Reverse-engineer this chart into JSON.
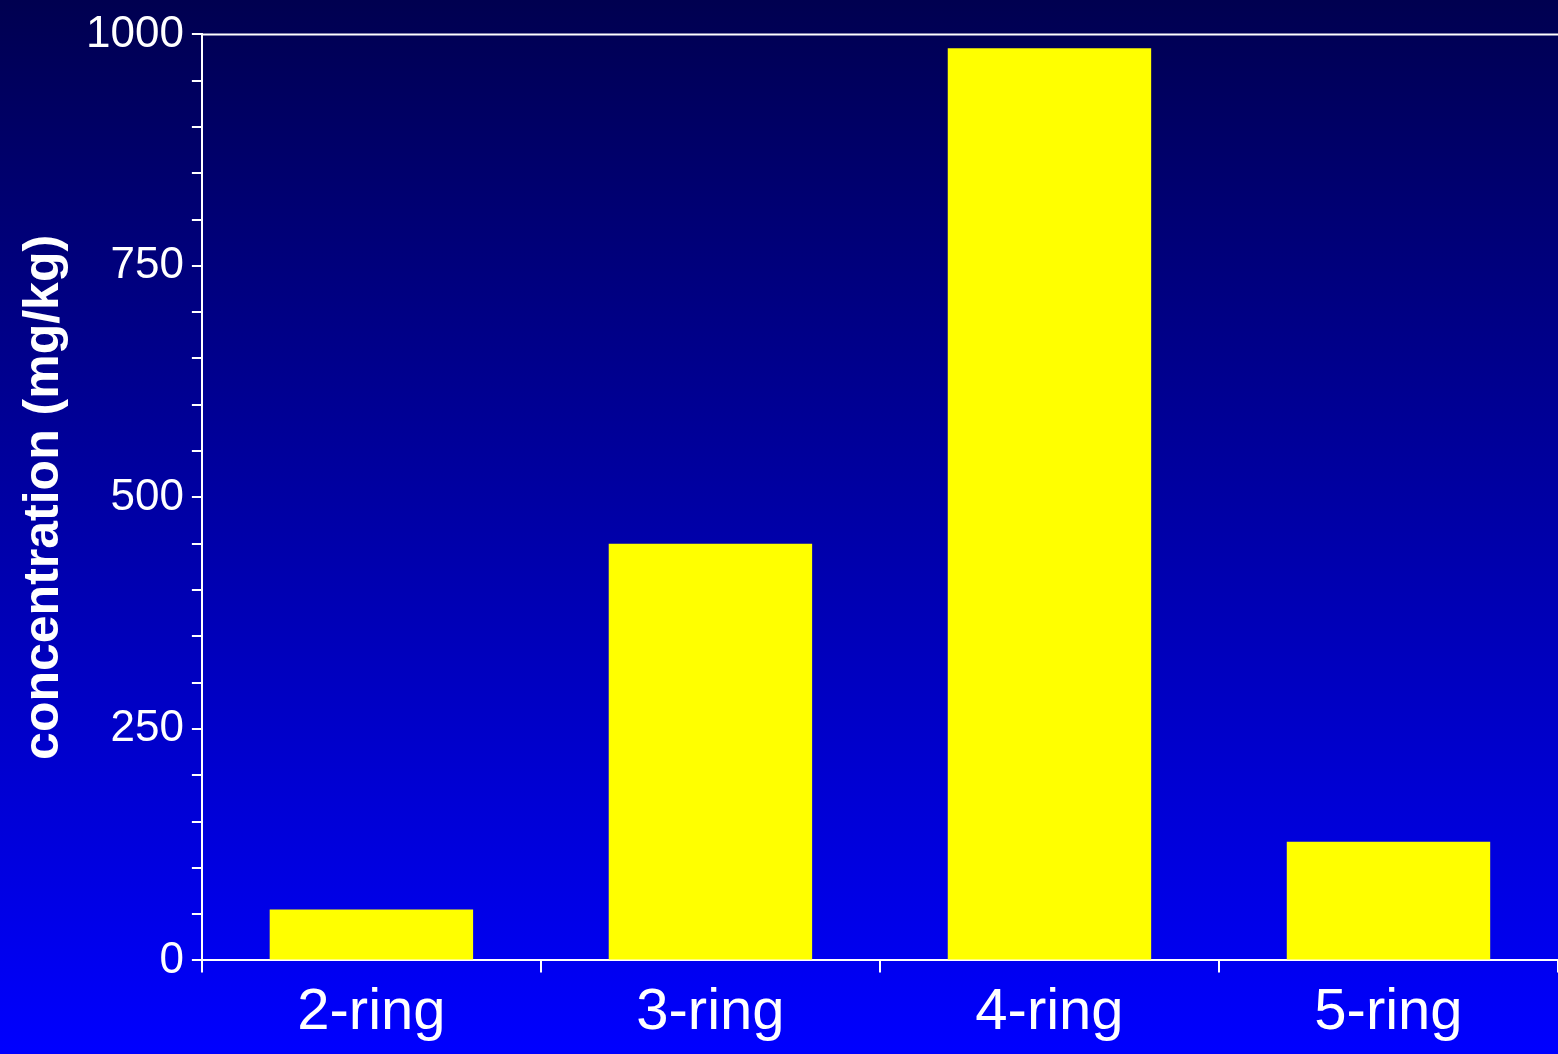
{
  "chart_data": {
    "type": "bar",
    "ylabel": "concentration (mg/kg)",
    "categories": [
      "2-ring",
      "3-ring",
      "4-ring",
      "5-ring"
    ],
    "values": [
      55,
      450,
      985,
      128
    ],
    "color": "#ffff00",
    "ylim": [
      0,
      1000
    ],
    "yticks": [
      0,
      {
        "value": 50,
        "label": null
      },
      {
        "value": 100,
        "label": null
      },
      {
        "value": 150,
        "label": null
      },
      {
        "value": 200,
        "label": null
      },
      250,
      {
        "value": 300,
        "label": null
      },
      {
        "value": 350,
        "label": null
      },
      {
        "value": 400,
        "label": null
      },
      {
        "value": 450,
        "label": null
      },
      500,
      {
        "value": 550,
        "label": null
      },
      {
        "value": 600,
        "label": null
      },
      {
        "value": 650,
        "label": null
      },
      {
        "value": 700,
        "label": null
      },
      750,
      {
        "value": 800,
        "label": null
      },
      {
        "value": 850,
        "label": null
      },
      {
        "value": 900,
        "label": null
      },
      {
        "value": 950,
        "label": null
      },
      1000
    ],
    "grid": false,
    "legend": false
  }
}
